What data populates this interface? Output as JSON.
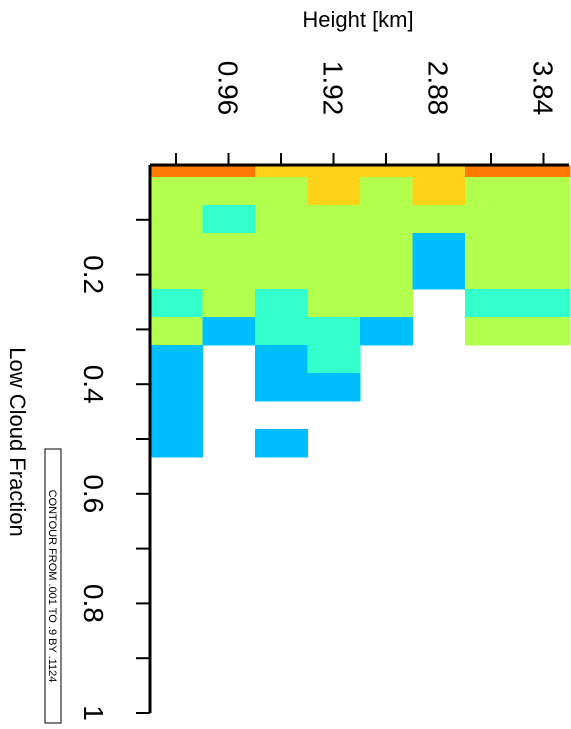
{
  "chart_data": {
    "type": "heatmap",
    "xlabel": "Low Cloud Fraction",
    "ylabel": "Height [km]",
    "x_ticks": [
      "0.2",
      "0.4",
      "0.6",
      "0.8",
      "1"
    ],
    "y_ticks": [
      "0.96",
      "1.92",
      "2.88",
      "3.84"
    ],
    "xlim": [
      0,
      1
    ],
    "ylim": [
      0,
      3.84
    ],
    "contour_note": "CONTOUR FROM .001 TO .9 BY .1124",
    "level_colors": {
      "1": "#00bfff",
      "2": "#33ffcc",
      "3": "#b3ff4d",
      "4": "#ffd21a",
      "5": "#ff7a00"
    },
    "row_centers_km": [
      0.24,
      0.72,
      1.2,
      1.68,
      2.16,
      2.64,
      3.12,
      3.6
    ],
    "rows": [
      {
        "height_km": 0.24,
        "levels": [
          5,
          3,
          3,
          3,
          3,
          2,
          3,
          1,
          1,
          1,
          1
        ]
      },
      {
        "height_km": 0.72,
        "levels": [
          5,
          3,
          2,
          3,
          3,
          3,
          1,
          0,
          0,
          0,
          0
        ]
      },
      {
        "height_km": 1.2,
        "levels": [
          4,
          3,
          3,
          3,
          3,
          2,
          2,
          1,
          1,
          0,
          1
        ]
      },
      {
        "height_km": 1.68,
        "levels": [
          4,
          4,
          3,
          3,
          3,
          3,
          2,
          2,
          1,
          0,
          0
        ]
      },
      {
        "height_km": 2.16,
        "levels": [
          4,
          3,
          3,
          3,
          3,
          3,
          1,
          0,
          0,
          0,
          0
        ]
      },
      {
        "height_km": 2.64,
        "levels": [
          4,
          4,
          3,
          1,
          1,
          0,
          0,
          0,
          0,
          0,
          0
        ]
      },
      {
        "height_km": 3.12,
        "levels": [
          5,
          3,
          3,
          3,
          3,
          2,
          3,
          0,
          0,
          0,
          0
        ]
      },
      {
        "height_km": 3.6,
        "levels": [
          5,
          3,
          3,
          3,
          3,
          2,
          3,
          0,
          0,
          0,
          0
        ]
      }
    ]
  }
}
